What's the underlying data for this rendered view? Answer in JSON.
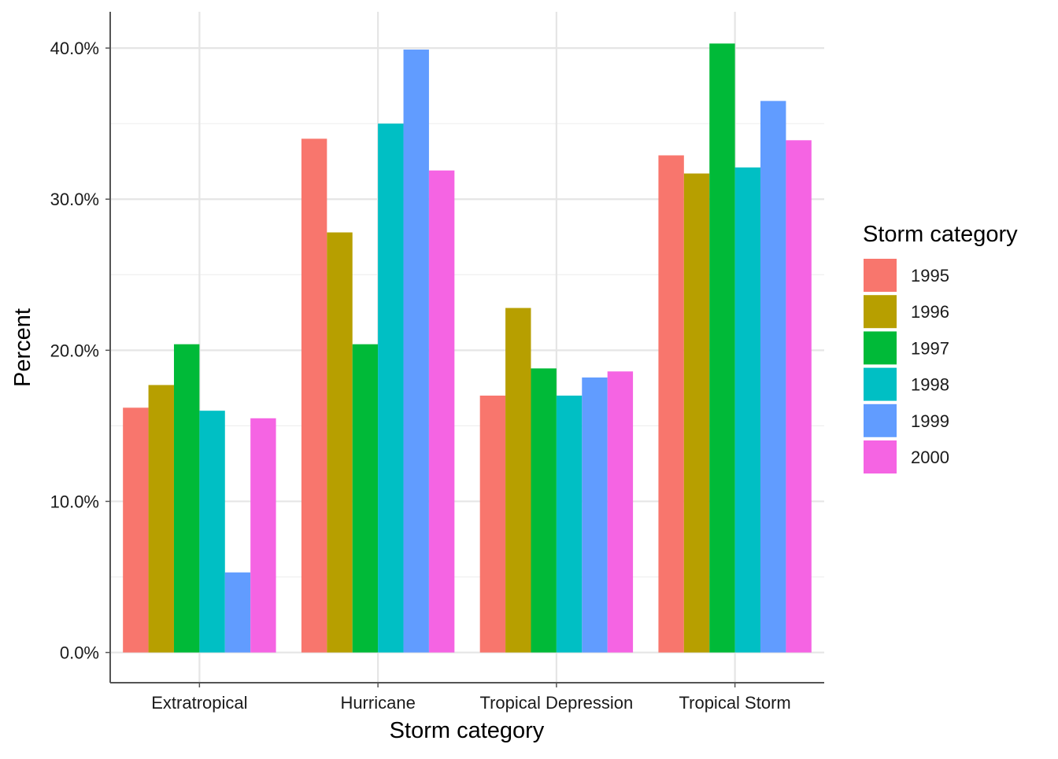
{
  "chart_data": {
    "type": "bar",
    "title": "",
    "xlabel": "Storm category",
    "ylabel": "Percent",
    "categories": [
      "Extratropical",
      "Hurricane",
      "Tropical Depression",
      "Tropical Storm"
    ],
    "series": [
      {
        "name": "1995",
        "color": "#F8766D",
        "values": [
          16.2,
          34.0,
          17.0,
          32.9
        ]
      },
      {
        "name": "1996",
        "color": "#B79F00",
        "values": [
          17.7,
          27.8,
          22.8,
          31.7
        ]
      },
      {
        "name": "1997",
        "color": "#00BA38",
        "values": [
          20.4,
          20.4,
          18.8,
          40.3
        ]
      },
      {
        "name": "1998",
        "color": "#00BFC4",
        "values": [
          16.0,
          35.0,
          17.0,
          32.1
        ]
      },
      {
        "name": "1999",
        "color": "#619CFF",
        "values": [
          5.3,
          39.9,
          18.2,
          36.5
        ]
      },
      {
        "name": "2000",
        "color": "#F564E3",
        "values": [
          15.5,
          31.9,
          18.6,
          33.9
        ]
      }
    ],
    "ylim": [
      -2.0,
      42.4
    ],
    "y_ticks": [
      0,
      10,
      20,
      30,
      40
    ],
    "y_tick_labels": [
      "0.0%",
      "10.0%",
      "20.0%",
      "30.0%",
      "40.0%"
    ],
    "grid": true,
    "legend": {
      "title": "Storm category",
      "position": "right"
    }
  }
}
